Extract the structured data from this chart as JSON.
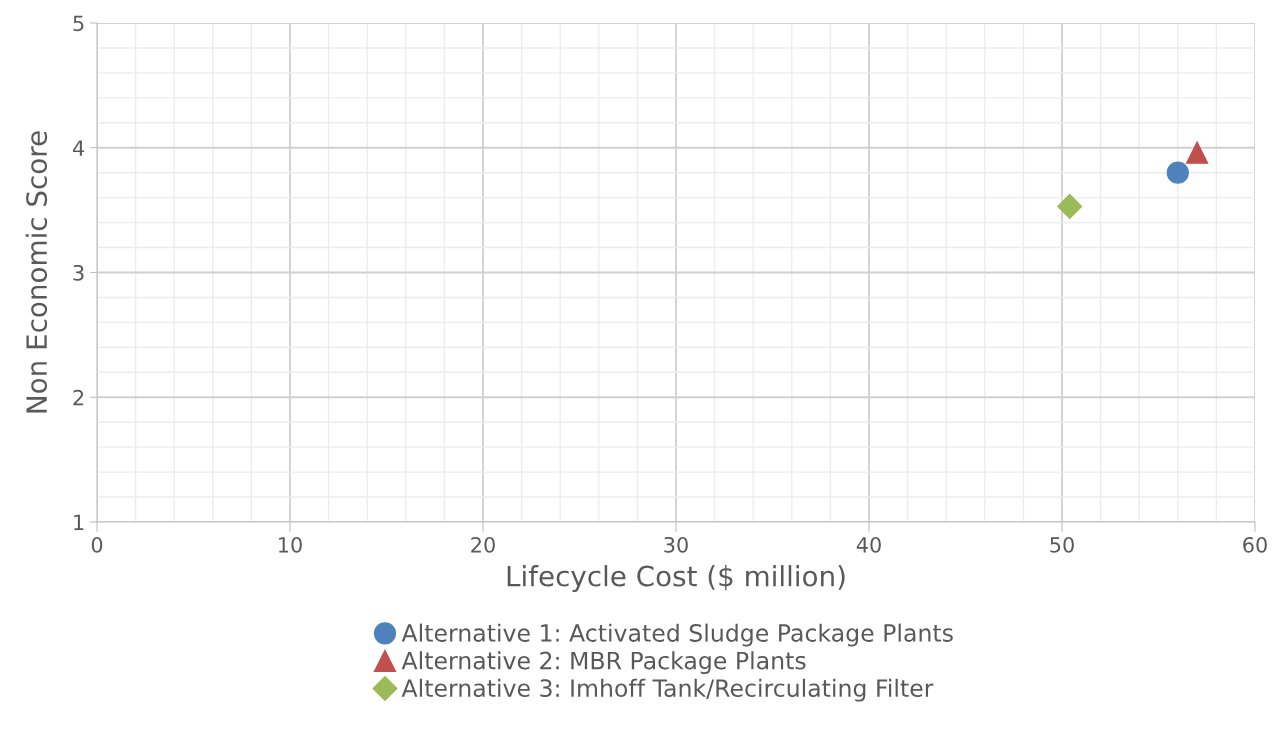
{
  "chart_data": {
    "type": "scatter",
    "xlabel": "Lifecycle Cost ($ million)",
    "ylabel": "Non Economic Score",
    "xlim": [
      0,
      60
    ],
    "xticks": [
      0,
      10,
      20,
      30,
      40,
      50,
      60
    ],
    "ylim": [
      1,
      5
    ],
    "yticks": [
      1,
      2,
      3,
      4,
      5
    ],
    "grid": true,
    "legend": "bottom",
    "series": [
      {
        "name": "Alternative 1: Activated Sludge Package Plants",
        "color": "#4f81bd",
        "marker": "circle",
        "x": [
          56.0
        ],
        "values": [
          3.8
        ]
      },
      {
        "name": "Alternative 2: MBR Package Plants",
        "color": "#c0504d",
        "marker": "triangle",
        "x": [
          57.0
        ],
        "values": [
          3.96
        ]
      },
      {
        "name": "Alternative 3: Imhoff Tank/Recirculating Filter",
        "color": "#9bbb59",
        "marker": "diamond",
        "x": [
          50.4
        ],
        "values": [
          3.53
        ]
      }
    ]
  }
}
